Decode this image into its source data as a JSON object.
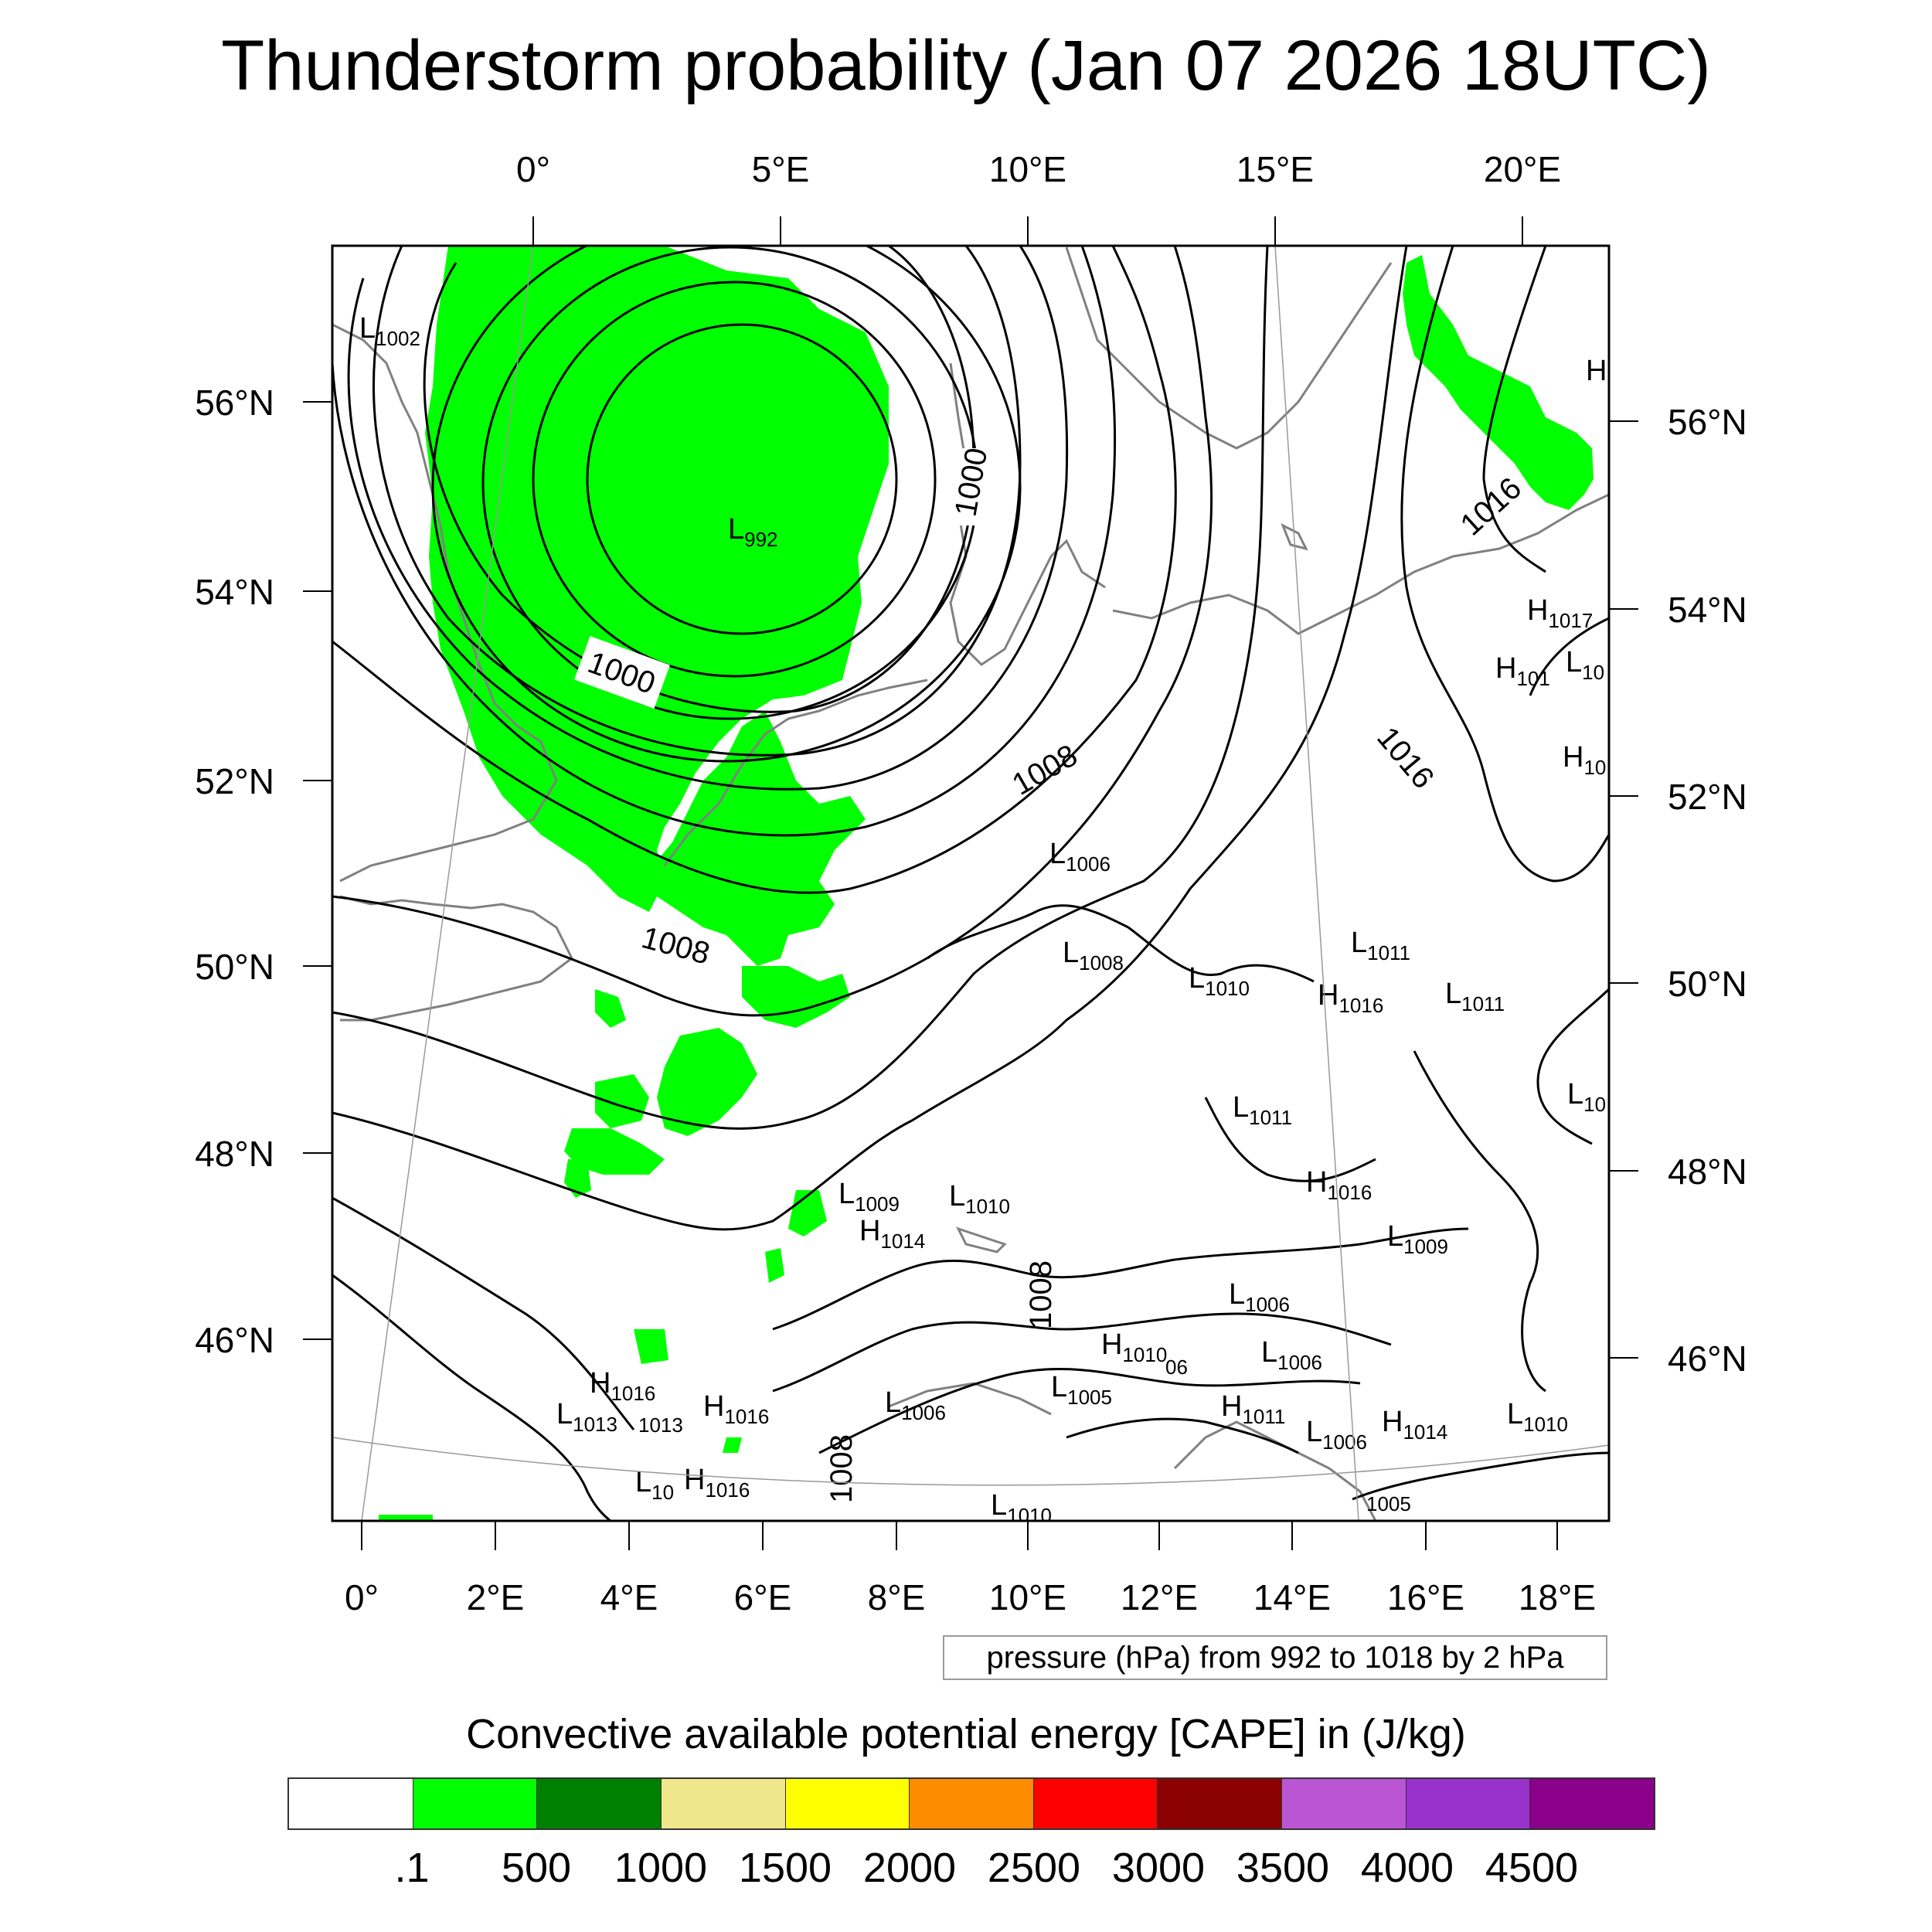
{
  "title": "Thunderstorm probability (Jan 07 2026 18UTC)",
  "map": {
    "top_lon_labels": [
      "0°",
      "5°E",
      "10°E",
      "15°E",
      "20°E"
    ],
    "bottom_lon_labels": [
      "0°",
      "2°E",
      "4°E",
      "6°E",
      "8°E",
      "10°E",
      "12°E",
      "14°E",
      "16°E",
      "18°E"
    ],
    "left_lat_labels": [
      "56°N",
      "54°N",
      "52°N",
      "50°N",
      "48°N",
      "46°N"
    ],
    "right_lat_labels": [
      "56°N",
      "54°N",
      "52°N",
      "50°N",
      "48°N",
      "46°N"
    ],
    "contour_labels": [
      "1000",
      "1000",
      "1008",
      "1008",
      "1008",
      "1008",
      "1016",
      "1016"
    ],
    "pressure_centers": [
      {
        "t": "L",
        "v": "1002"
      },
      {
        "t": "L",
        "v": "992"
      },
      {
        "t": "H",
        "v": ""
      },
      {
        "t": "H",
        "v": "1017"
      },
      {
        "t": "H",
        "v": "101"
      },
      {
        "t": "L",
        "v": "10"
      },
      {
        "t": "H",
        "v": "10"
      },
      {
        "t": "L",
        "v": "1006"
      },
      {
        "t": "L",
        "v": "1008"
      },
      {
        "t": "L",
        "v": "1010"
      },
      {
        "t": "L",
        "v": "1011"
      },
      {
        "t": "H",
        "v": "1016"
      },
      {
        "t": "L",
        "v": "1011"
      },
      {
        "t": "L",
        "v": "10"
      },
      {
        "t": "L",
        "v": "1011"
      },
      {
        "t": "H",
        "v": "1016"
      },
      {
        "t": "L",
        "v": "1009"
      },
      {
        "t": "L",
        "v": "1010"
      },
      {
        "t": "H",
        "v": "1014"
      },
      {
        "t": "L",
        "v": "1009"
      },
      {
        "t": "L",
        "v": "1006"
      },
      {
        "t": "H",
        "v": "1010"
      },
      {
        "t": "L",
        "v": "1006"
      },
      {
        "t": "H",
        "v": "1016"
      },
      {
        "t": "L",
        "v": "1013"
      },
      {
        "t": "H",
        "v": "1016"
      },
      {
        "t": "L",
        "v": "1006"
      },
      {
        "t": "L",
        "v": "1005"
      },
      {
        "t": "H",
        "v": "1011"
      },
      {
        "t": "L",
        "v": "1006"
      },
      {
        "t": "H",
        "v": "1014"
      },
      {
        "t": "L",
        "v": "1010"
      },
      {
        "t": "L",
        "v": "10"
      },
      {
        "t": "H",
        "v": "1016"
      },
      {
        "t": "L",
        "v": "1010"
      }
    ],
    "stray_labels": [
      "06",
      "1013",
      "1005"
    ]
  },
  "contour_info": "pressure (hPa) from 992 to 1018 by 2 hPa",
  "colorbar": {
    "title": "Convective available potential energy [CAPE] in (J/kg)",
    "colors": [
      "#ffffff",
      "#00ff00",
      "#008000",
      "#f0e68c",
      "#ffff00",
      "#ff8c00",
      "#ff0000",
      "#8b0000",
      "#ba55d3",
      "#9932cc",
      "#8b008b"
    ],
    "ticks": [
      ".1",
      "500",
      "1000",
      "1500",
      "2000",
      "2500",
      "3000",
      "3500",
      "4000",
      "4500"
    ]
  },
  "colors": {
    "cape_low": "#00ff00",
    "contour": "#000000",
    "coast": "#808080"
  }
}
